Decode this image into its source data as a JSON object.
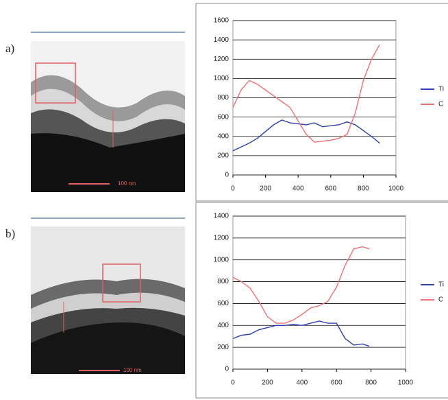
{
  "panels": [
    {
      "label": "a)",
      "scale_bar": "100 nm"
    },
    {
      "label": "b)",
      "scale_bar": "100 nm"
    }
  ],
  "chart_data": [
    {
      "type": "line",
      "x": [
        0,
        50,
        100,
        150,
        200,
        250,
        300,
        350,
        400,
        450,
        500,
        550,
        600,
        650,
        700,
        750,
        800,
        850,
        900
      ],
      "series": [
        {
          "name": "Ti",
          "color": "#2a3fb0",
          "values": [
            250,
            290,
            330,
            380,
            450,
            520,
            570,
            540,
            530,
            520,
            540,
            500,
            510,
            520,
            550,
            520,
            460,
            400,
            330
          ]
        },
        {
          "name": "C",
          "color": "#f07070",
          "values": [
            700,
            880,
            980,
            940,
            880,
            820,
            760,
            700,
            560,
            420,
            340,
            350,
            360,
            380,
            420,
            640,
            980,
            1200,
            1350
          ]
        }
      ],
      "xlim": [
        0,
        1000
      ],
      "xticks": [
        0,
        200,
        400,
        600,
        800,
        1000
      ],
      "ylim": [
        0,
        1600
      ],
      "yticks": [
        0,
        200,
        400,
        600,
        800,
        1000,
        1200,
        1400,
        1600
      ],
      "grid": true,
      "legend": "right"
    },
    {
      "type": "line",
      "x": [
        0,
        50,
        100,
        150,
        200,
        250,
        300,
        350,
        400,
        450,
        500,
        550,
        600,
        650,
        700,
        750,
        790
      ],
      "series": [
        {
          "name": "Ti",
          "color": "#2a3fb0",
          "values": [
            280,
            310,
            320,
            360,
            380,
            400,
            400,
            410,
            400,
            420,
            440,
            420,
            420,
            280,
            220,
            230,
            210
          ]
        },
        {
          "name": "C",
          "color": "#f07070",
          "values": [
            840,
            800,
            740,
            620,
            480,
            420,
            420,
            450,
            500,
            560,
            580,
            620,
            750,
            950,
            1100,
            1120,
            1100
          ]
        }
      ],
      "xlim": [
        0,
        1000
      ],
      "xticks": [
        0,
        200,
        400,
        600,
        800,
        1000
      ],
      "ylim": [
        0,
        1400
      ],
      "yticks": [
        0,
        200,
        400,
        600,
        800,
        1000,
        1200,
        1400
      ],
      "grid": true,
      "legend": "right"
    }
  ]
}
